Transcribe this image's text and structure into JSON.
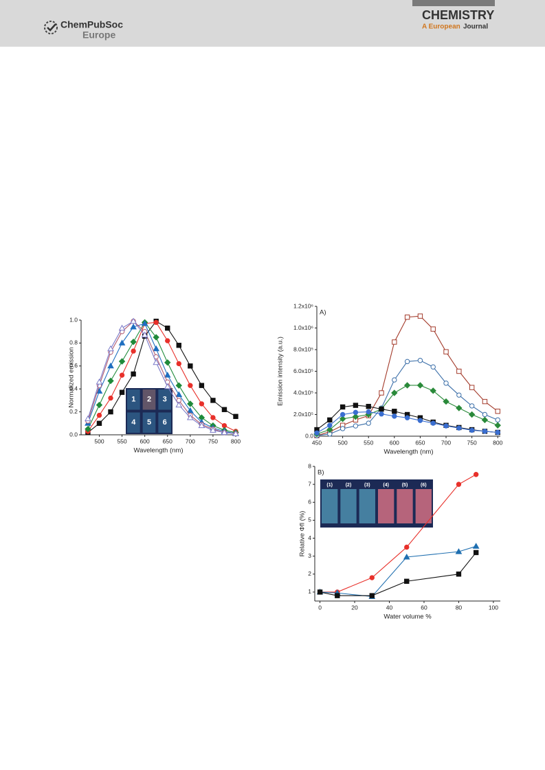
{
  "header": {
    "publisher": "ChemPubSoc",
    "publisher_sub": "Europe",
    "journal_title": "CHEMISTRY",
    "journal_sub_1": "A European",
    "journal_sub_2": "Journal"
  },
  "chart_data": [
    {
      "type": "line",
      "ylabel": "Normalized emission",
      "xlabel": "Wavelength (nm)",
      "xlim": [
        460,
        800
      ],
      "xticks": [
        500,
        550,
        600,
        650,
        700,
        750,
        800
      ],
      "ylim": [
        0,
        1
      ],
      "yticks": [
        {
          "value": 0,
          "label": "0.0"
        },
        0.2,
        0.4,
        0.6,
        0.8,
        {
          "value": 1,
          "label": "1.0"
        }
      ],
      "inset_labels": [
        "1",
        "2",
        "3",
        "4",
        "5",
        "6"
      ],
      "x": [
        475,
        500,
        525,
        550,
        575,
        600,
        625,
        650,
        675,
        700,
        725,
        750,
        775,
        800
      ],
      "series": [
        {
          "color": "#111111",
          "marker": "square",
          "filled": true,
          "values": [
            0.02,
            0.1,
            0.2,
            0.37,
            0.53,
            0.86,
            0.99,
            0.93,
            0.78,
            0.6,
            0.43,
            0.3,
            0.22,
            0.16
          ]
        },
        {
          "color": "#e8302a",
          "marker": "circle",
          "filled": true,
          "values": [
            0.03,
            0.17,
            0.32,
            0.52,
            0.73,
            0.97,
            0.98,
            0.82,
            0.62,
            0.43,
            0.27,
            0.15,
            0.08,
            0.03
          ]
        },
        {
          "color": "#1f8a3a",
          "marker": "diamond",
          "filled": true,
          "values": [
            0.05,
            0.26,
            0.47,
            0.64,
            0.81,
            0.98,
            0.85,
            0.63,
            0.43,
            0.27,
            0.15,
            0.08,
            0.04,
            0.02
          ]
        },
        {
          "color": "#1f6fc0",
          "marker": "triangle",
          "filled": true,
          "values": [
            0.1,
            0.38,
            0.6,
            0.8,
            0.94,
            0.97,
            0.75,
            0.52,
            0.35,
            0.21,
            0.11,
            0.06,
            0.03,
            0.01
          ]
        },
        {
          "color": "#b05a70",
          "marker": "circle",
          "filled": false,
          "values": [
            0.12,
            0.43,
            0.72,
            0.9,
            0.99,
            0.9,
            0.68,
            0.46,
            0.3,
            0.17,
            0.09,
            0.05,
            0.02,
            0.01
          ]
        },
        {
          "color": "#7a7ac8",
          "marker": "triangle",
          "filled": false,
          "values": [
            0.14,
            0.46,
            0.75,
            0.93,
            0.99,
            0.87,
            0.63,
            0.42,
            0.26,
            0.15,
            0.08,
            0.04,
            0.02,
            0.01
          ]
        }
      ]
    },
    {
      "type": "line",
      "panel": "A)",
      "ylabel": "Emission intensity (a.u.)",
      "xlabel": "Wavelength (nm)",
      "xlim": [
        450,
        805
      ],
      "xticks": [
        450,
        500,
        550,
        600,
        650,
        700,
        750,
        800
      ],
      "ylim": [
        0,
        1200000
      ],
      "yticks": [
        {
          "value": 0,
          "label": "0.0"
        },
        {
          "value": 200000,
          "label": "2.0x10⁵"
        },
        {
          "value": 400000,
          "label": "4.0x10⁵"
        },
        {
          "value": 600000,
          "label": "6.0x10⁵"
        },
        {
          "value": 800000,
          "label": "8.0x10⁵"
        },
        {
          "value": 1000000,
          "label": "1.0x10⁶"
        },
        {
          "value": 1200000,
          "label": "1.2x10⁶"
        }
      ],
      "x": [
        450,
        475,
        500,
        525,
        550,
        575,
        600,
        625,
        650,
        675,
        700,
        725,
        750,
        775,
        800
      ],
      "series": [
        {
          "color": "#a33a2a",
          "marker": "square",
          "filled": false,
          "values": [
            5000,
            40000,
            100000,
            150000,
            190000,
            400000,
            870000,
            1100000,
            1110000,
            990000,
            780000,
            600000,
            450000,
            320000,
            230000
          ]
        },
        {
          "color": "#3a6ea8",
          "marker": "circle",
          "filled": false,
          "values": [
            5000,
            20000,
            70000,
            95000,
            120000,
            260000,
            520000,
            690000,
            700000,
            640000,
            490000,
            380000,
            280000,
            200000,
            150000
          ]
        },
        {
          "color": "#2a8a3a",
          "marker": "diamond",
          "filled": true,
          "values": [
            20000,
            60000,
            160000,
            180000,
            200000,
            250000,
            400000,
            470000,
            470000,
            420000,
            320000,
            260000,
            200000,
            150000,
            100000
          ]
        },
        {
          "color": "#111111",
          "marker": "square",
          "filled": true,
          "values": [
            60000,
            150000,
            270000,
            285000,
            275000,
            250000,
            230000,
            200000,
            170000,
            130000,
            100000,
            80000,
            60000,
            45000,
            35000
          ]
        },
        {
          "color": "#3a6ed0",
          "marker": "circle",
          "filled": true,
          "values": [
            30000,
            100000,
            200000,
            220000,
            225000,
            205000,
            185000,
            170000,
            145000,
            120000,
            95000,
            75000,
            55000,
            45000,
            35000
          ]
        }
      ]
    },
    {
      "type": "line",
      "panel": "B)",
      "ylabel": "Relative Φfl (%)",
      "xlabel": "Water volume %",
      "xlim": [
        -3,
        104
      ],
      "xticks": [
        0,
        20,
        40,
        60,
        80,
        100
      ],
      "ylim": [
        0.5,
        8
      ],
      "yticks": [
        1,
        2,
        3,
        4,
        5,
        6,
        7,
        8
      ],
      "inset_labels": [
        "(1)",
        "(2)",
        "(3)",
        "(4)",
        "(5)",
        "(6)"
      ],
      "x": [
        0,
        10,
        30,
        50,
        80,
        90
      ],
      "series": [
        {
          "color": "#e8302a",
          "marker": "circle",
          "filled": true,
          "values": [
            1,
            1,
            1.8,
            3.5,
            7,
            7.55
          ]
        },
        {
          "color": "#1f6fb0",
          "marker": "triangle",
          "filled": true,
          "values": [
            1,
            0.95,
            0.75,
            2.95,
            3.25,
            3.55
          ]
        },
        {
          "color": "#111111",
          "marker": "square",
          "filled": true,
          "values": [
            1,
            0.8,
            0.8,
            1.6,
            2,
            3.2
          ]
        }
      ]
    }
  ]
}
